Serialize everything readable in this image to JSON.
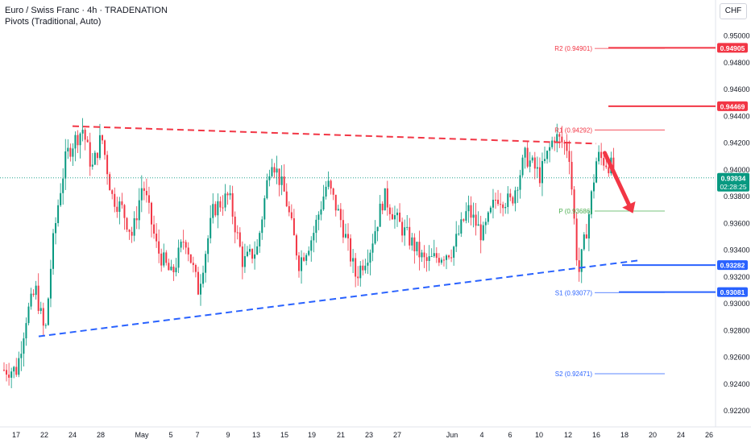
{
  "header": {
    "symbol_line": "Euro / Swiss Franc · 4h · TRADENATION",
    "indicator_line": "Pivots (Traditional, Auto)",
    "currency": "CHF"
  },
  "colors": {
    "up": "#089981",
    "down": "#f23645",
    "resistance": "#f23645",
    "support": "#2962ff",
    "pivot": "#4caf50",
    "axis_text": "#131722"
  },
  "chart_data": {
    "type": "candlestick",
    "title": "",
    "ylim": [
      0.9217,
      0.9507
    ],
    "y_ticks": [
      "0.95000",
      "0.94800",
      "0.94600",
      "0.94400",
      "0.94200",
      "0.94000",
      "0.93800",
      "0.93600",
      "0.93400",
      "0.93200",
      "0.93000",
      "0.92800",
      "0.92600",
      "0.92400",
      "0.92200"
    ],
    "x_ticks": [
      "17",
      "22",
      "24",
      "28",
      "May",
      "5",
      "7",
      "9",
      "13",
      "15",
      "19",
      "21",
      "23",
      "27",
      "Jun",
      "4",
      "6",
      "10",
      "12",
      "16",
      "18",
      "20",
      "24",
      "26"
    ],
    "price_segments": [
      {
        "from_tick": 0,
        "to_tick": 1,
        "points": [
          0.925,
          0.929,
          0.931,
          0.9275
        ]
      },
      {
        "from_tick": 1,
        "to_tick": 2,
        "points": [
          0.9275,
          0.934,
          0.938,
          0.941,
          0.942
        ]
      },
      {
        "from_tick": 2,
        "to_tick": 3,
        "points": [
          0.942,
          0.943,
          0.94,
          0.9425
        ]
      },
      {
        "from_tick": 3,
        "to_tick": 4,
        "points": [
          0.9425,
          0.938,
          0.937,
          0.935,
          0.939
        ]
      },
      {
        "from_tick": 4,
        "to_tick": 5,
        "points": [
          0.939,
          0.934,
          0.932
        ]
      },
      {
        "from_tick": 5,
        "to_tick": 6,
        "points": [
          0.932,
          0.935,
          0.931
        ]
      },
      {
        "from_tick": 6,
        "to_tick": 7,
        "points": [
          0.931,
          0.937,
          0.938
        ]
      },
      {
        "from_tick": 7,
        "to_tick": 8,
        "points": [
          0.938,
          0.933,
          0.934
        ]
      },
      {
        "from_tick": 8,
        "to_tick": 9,
        "points": [
          0.934,
          0.941,
          0.938
        ]
      },
      {
        "from_tick": 9,
        "to_tick": 10,
        "points": [
          0.938,
          0.933,
          0.935
        ]
      },
      {
        "from_tick": 10,
        "to_tick": 11,
        "points": [
          0.935,
          0.939,
          0.936
        ]
      },
      {
        "from_tick": 11,
        "to_tick": 12,
        "points": [
          0.936,
          0.932,
          0.934
        ]
      },
      {
        "from_tick": 12,
        "to_tick": 13,
        "points": [
          0.934,
          0.938,
          0.936
        ]
      },
      {
        "from_tick": 13,
        "to_tick": 14,
        "points": [
          0.936,
          0.933,
          0.934
        ]
      },
      {
        "from_tick": 14,
        "to_tick": 15,
        "points": [
          0.934,
          0.937,
          0.935
        ]
      },
      {
        "from_tick": 15,
        "to_tick": 16,
        "points": [
          0.935,
          0.938,
          0.9375
        ]
      },
      {
        "from_tick": 16,
        "to_tick": 17,
        "points": [
          0.9375,
          0.941,
          0.9395
        ]
      },
      {
        "from_tick": 17,
        "to_tick": 18,
        "points": [
          0.9395,
          0.9425,
          0.9415
        ]
      },
      {
        "from_tick": 18,
        "to_tick": 19,
        "points": [
          0.9415,
          0.932,
          0.936,
          0.941
        ]
      },
      {
        "from_tick": 19,
        "to_tick": 20,
        "points": [
          0.941,
          0.9394
        ]
      }
    ],
    "current_price": {
      "value": 0.93934,
      "label": "0.93934",
      "countdown": "02:28:25"
    },
    "pivots": [
      {
        "name": "R2",
        "label": "R2 (0.94901)",
        "value": 0.94901,
        "color": "#f23645"
      },
      {
        "name": "R1",
        "label": "R1 (0.94292)",
        "value": 0.94292,
        "color": "#f23645"
      },
      {
        "name": "P",
        "label": "P (0.93686)",
        "value": 0.93686,
        "color": "#4caf50"
      },
      {
        "name": "S1",
        "label": "S1 (0.93077)",
        "value": 0.93077,
        "color": "#2962ff"
      },
      {
        "name": "S2",
        "label": "S2 (0.92471)",
        "value": 0.92471,
        "color": "#2962ff"
      }
    ],
    "levels": [
      {
        "label": "0.94905",
        "value": 0.94905,
        "color": "#f23645"
      },
      {
        "label": "0.94469",
        "value": 0.94469,
        "color": "#f23645"
      },
      {
        "label": "0.93282",
        "value": 0.93282,
        "color": "#2962ff"
      },
      {
        "label": "0.93081",
        "value": 0.93081,
        "color": "#2962ff"
      }
    ],
    "trendlines": [
      {
        "name": "resistance",
        "style": "dashed",
        "color": "#f23645",
        "start": {
          "x_tick": 2,
          "y": 0.9432
        },
        "end": {
          "x_tick": 19,
          "y": 0.9419
        }
      },
      {
        "name": "support",
        "style": "dashed",
        "color": "#2962ff",
        "start": {
          "x_tick": 0.8,
          "y": 0.9275
        },
        "end": {
          "x_tick": 20.6,
          "y": 0.9332
        }
      }
    ],
    "arrow": {
      "direction": "down",
      "color": "#f23645",
      "from": {
        "x_tick": 19.3,
        "y": 0.9412
      },
      "to": {
        "x_tick": 20.3,
        "y": 0.9367
      }
    }
  }
}
